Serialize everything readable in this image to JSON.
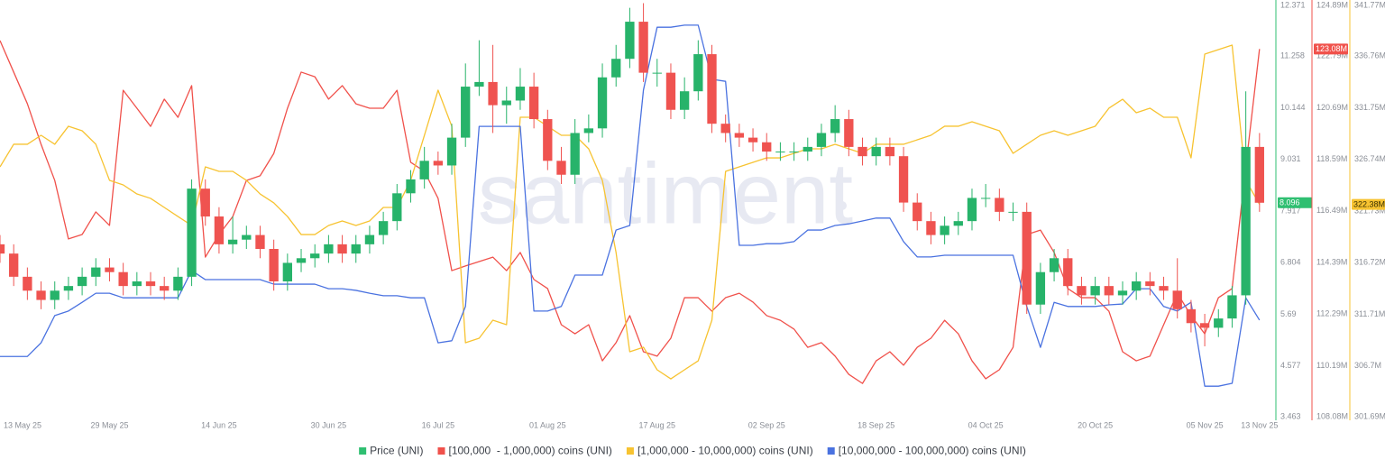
{
  "chart_data": {
    "type": "candlestick",
    "name": "Price (UNI)",
    "color": "#2fbf71",
    "up_color": "#27b36a",
    "down_color": "#ef5350",
    "watermark": "santiment",
    "grid": true,
    "legend": "bottom",
    "x": [
      "2025-05-13",
      "2025-05-15",
      "2025-05-17",
      "2025-05-19",
      "2025-05-21",
      "2025-05-23",
      "2025-05-25",
      "2025-05-27",
      "2025-05-29",
      "2025-05-31",
      "2025-06-02",
      "2025-06-04",
      "2025-06-06",
      "2025-06-08",
      "2025-06-10",
      "2025-06-12",
      "2025-06-14",
      "2025-06-16",
      "2025-06-18",
      "2025-06-20",
      "2025-06-22",
      "2025-06-24",
      "2025-06-26",
      "2025-06-28",
      "2025-06-30",
      "2025-07-02",
      "2025-07-04",
      "2025-07-06",
      "2025-07-08",
      "2025-07-10",
      "2025-07-12",
      "2025-07-14",
      "2025-07-16",
      "2025-07-18",
      "2025-07-20",
      "2025-07-22",
      "2025-07-24",
      "2025-07-26",
      "2025-07-28",
      "2025-07-30",
      "2025-08-01",
      "2025-08-03",
      "2025-08-05",
      "2025-08-07",
      "2025-08-09",
      "2025-08-11",
      "2025-08-13",
      "2025-08-15",
      "2025-08-17",
      "2025-08-19",
      "2025-08-21",
      "2025-08-23",
      "2025-08-25",
      "2025-08-27",
      "2025-08-29",
      "2025-08-31",
      "2025-09-02",
      "2025-09-04",
      "2025-09-06",
      "2025-09-08",
      "2025-09-10",
      "2025-09-12",
      "2025-09-14",
      "2025-09-16",
      "2025-09-18",
      "2025-09-20",
      "2025-09-22",
      "2025-09-24",
      "2025-09-26",
      "2025-09-28",
      "2025-09-30",
      "2025-10-02",
      "2025-10-04",
      "2025-10-06",
      "2025-10-08",
      "2025-10-10",
      "2025-10-12",
      "2025-10-14",
      "2025-10-16",
      "2025-10-18",
      "2025-10-20",
      "2025-10-22",
      "2025-10-24",
      "2025-10-26",
      "2025-10-28",
      "2025-10-30",
      "2025-11-01",
      "2025-11-03",
      "2025-11-05",
      "2025-11-07",
      "2025-11-09",
      "2025-11-11",
      "2025-11-13"
    ],
    "xlim": [
      "2025-05-13",
      "2025-11-15"
    ],
    "xticks": [
      {
        "value": "2025-05-13",
        "label": "13 May 25"
      },
      {
        "value": "2025-05-29",
        "label": "29 May 25"
      },
      {
        "value": "2025-06-14",
        "label": "14 Jun 25"
      },
      {
        "value": "2025-06-30",
        "label": "30 Jun 25"
      },
      {
        "value": "2025-07-16",
        "label": "16 Jul 25"
      },
      {
        "value": "2025-08-01",
        "label": "01 Aug 25"
      },
      {
        "value": "2025-08-17",
        "label": "17 Aug 25"
      },
      {
        "value": "2025-09-02",
        "label": "02 Sep 25"
      },
      {
        "value": "2025-09-18",
        "label": "18 Sep 25"
      },
      {
        "value": "2025-10-04",
        "label": "04 Oct 25"
      },
      {
        "value": "2025-10-20",
        "label": "20 Oct 25"
      },
      {
        "value": "2025-11-05",
        "label": "05 Nov 25"
      },
      {
        "value": "2025-11-13",
        "label": "13 Nov 25"
      }
    ],
    "open": [
      7.2,
      7.0,
      6.5,
      6.2,
      6.0,
      6.2,
      6.3,
      6.5,
      6.7,
      6.6,
      6.3,
      6.4,
      6.3,
      6.2,
      6.5,
      8.4,
      7.8,
      7.2,
      7.3,
      7.4,
      7.1,
      6.4,
      6.8,
      6.9,
      7.0,
      7.2,
      7.0,
      7.2,
      7.4,
      7.7,
      8.3,
      8.6,
      9.0,
      8.9,
      9.5,
      10.6,
      10.7,
      10.2,
      10.3,
      10.6,
      9.9,
      9.0,
      8.7,
      9.6,
      9.7,
      10.8,
      11.2,
      12.0,
      10.9,
      10.9,
      10.1,
      10.5,
      11.3,
      9.8,
      9.6,
      9.5,
      9.4,
      9.2,
      9.2,
      9.2,
      9.3,
      9.6,
      9.9,
      9.3,
      9.1,
      9.3,
      9.1,
      8.1,
      7.7,
      7.4,
      7.6,
      7.7,
      8.2,
      8.2,
      7.9,
      7.9,
      5.9,
      6.6,
      6.9,
      6.3,
      6.1,
      6.3,
      6.1,
      6.2,
      6.4,
      6.3,
      6.2,
      5.8,
      5.5,
      5.4,
      5.6,
      6.1,
      9.3
    ],
    "high": [
      7.4,
      7.2,
      6.7,
      6.4,
      6.4,
      6.5,
      6.7,
      6.9,
      6.9,
      6.8,
      6.6,
      6.6,
      6.5,
      6.7,
      8.6,
      8.6,
      8.0,
      7.8,
      7.6,
      7.6,
      7.3,
      7.0,
      7.1,
      7.2,
      7.4,
      7.4,
      7.4,
      7.6,
      7.9,
      8.5,
      8.8,
      9.3,
      9.2,
      9.8,
      11.1,
      11.6,
      11.5,
      10.6,
      11.0,
      10.9,
      10.1,
      9.3,
      9.9,
      10.0,
      11.1,
      11.5,
      12.3,
      12.4,
      11.2,
      11.1,
      10.8,
      11.6,
      11.5,
      10.0,
      9.8,
      9.7,
      9.6,
      9.4,
      9.4,
      9.5,
      9.8,
      10.2,
      10.1,
      9.5,
      9.5,
      9.5,
      9.3,
      8.3,
      7.9,
      7.8,
      7.9,
      8.4,
      8.5,
      8.4,
      8.1,
      8.1,
      6.8,
      7.1,
      7.1,
      6.5,
      6.5,
      6.5,
      6.4,
      6.6,
      6.6,
      6.5,
      6.9,
      6.0,
      5.7,
      5.8,
      6.3,
      10.5,
      9.6
    ],
    "low": [
      6.8,
      6.3,
      6.0,
      5.8,
      5.8,
      6.0,
      6.1,
      6.3,
      6.4,
      6.1,
      6.1,
      6.1,
      6.0,
      6.0,
      6.3,
      7.6,
      7.0,
      7.0,
      7.1,
      6.9,
      6.2,
      6.2,
      6.6,
      6.7,
      6.8,
      6.8,
      6.8,
      7.0,
      7.2,
      7.5,
      8.1,
      8.4,
      8.7,
      8.7,
      9.3,
      10.4,
      9.6,
      9.8,
      10.1,
      9.7,
      8.8,
      8.5,
      8.5,
      9.4,
      9.5,
      10.6,
      11.0,
      10.7,
      10.6,
      9.9,
      9.9,
      10.3,
      9.6,
      9.4,
      9.3,
      9.2,
      9.0,
      9.0,
      9.0,
      9.0,
      9.1,
      9.4,
      9.1,
      8.9,
      8.9,
      8.9,
      7.9,
      7.5,
      7.2,
      7.2,
      7.4,
      7.5,
      8.0,
      7.7,
      7.7,
      5.7,
      5.7,
      6.4,
      6.1,
      5.9,
      5.9,
      5.9,
      5.9,
      6.0,
      6.1,
      6.0,
      5.6,
      5.3,
      5.0,
      5.2,
      5.4,
      5.9,
      7.9
    ],
    "close": [
      7.0,
      6.5,
      6.2,
      6.0,
      6.2,
      6.3,
      6.5,
      6.7,
      6.6,
      6.3,
      6.4,
      6.3,
      6.2,
      6.5,
      8.4,
      7.8,
      7.2,
      7.3,
      7.4,
      7.1,
      6.4,
      6.8,
      6.9,
      7.0,
      7.2,
      7.0,
      7.2,
      7.4,
      7.7,
      8.3,
      8.6,
      9.0,
      8.9,
      9.5,
      10.6,
      10.7,
      10.2,
      10.3,
      10.6,
      9.9,
      9.0,
      8.7,
      9.6,
      9.7,
      10.8,
      11.2,
      12.0,
      10.9,
      10.9,
      10.1,
      10.5,
      11.3,
      9.8,
      9.6,
      9.5,
      9.4,
      9.2,
      9.2,
      9.2,
      9.3,
      9.6,
      9.9,
      9.3,
      9.1,
      9.3,
      9.1,
      8.1,
      7.7,
      7.4,
      7.6,
      7.7,
      8.2,
      8.2,
      7.9,
      7.9,
      5.9,
      6.6,
      6.9,
      6.3,
      6.1,
      6.3,
      6.1,
      6.2,
      6.4,
      6.3,
      6.2,
      5.8,
      5.5,
      5.4,
      5.6,
      6.1,
      9.3,
      8.096
    ],
    "last_label": "8.096",
    "ylim": [
      3.463,
      12.371
    ],
    "yticks": [
      3.463,
      4.577,
      5.69,
      6.804,
      7.917,
      9.031,
      10.144,
      11.258,
      12.371
    ],
    "y2lim": [
      108.08,
      124.89
    ],
    "y2ticks": [
      {
        "value": 108.08,
        "label": "108.08M"
      },
      {
        "value": 110.19,
        "label": "110.19M"
      },
      {
        "value": 112.29,
        "label": "112.29M"
      },
      {
        "value": 114.39,
        "label": "114.39M"
      },
      {
        "value": 116.49,
        "label": "116.49M"
      },
      {
        "value": 118.59,
        "label": "118.59M"
      },
      {
        "value": 120.69,
        "label": "120.69M"
      },
      {
        "value": 122.79,
        "label": "122.79M"
      },
      {
        "value": 124.89,
        "label": "124.89M"
      }
    ],
    "y3lim": [
      301.69,
      341.77
    ],
    "y3ticks": [
      {
        "value": 301.69,
        "label": "301.69M"
      },
      {
        "value": 306.7,
        "label": "306.7M"
      },
      {
        "value": 311.71,
        "label": "311.71M"
      },
      {
        "value": 316.72,
        "label": "316.72M"
      },
      {
        "value": 321.73,
        "label": "321.73M"
      },
      {
        "value": 326.74,
        "label": "326.74M"
      },
      {
        "value": 331.75,
        "label": "331.75M"
      },
      {
        "value": 336.76,
        "label": "336.76M"
      },
      {
        "value": 341.77,
        "label": "341.77M"
      }
    ],
    "y4lim": [
      0,
      100
    ],
    "series": [
      {
        "name": "[100,000  - 1,000,000) coins (UNI)",
        "color": "#f0514b",
        "axis": "y2",
        "last_label": "123.08M",
        "values": [
          123.42,
          122.14,
          120.85,
          119.2,
          117.73,
          115.35,
          115.53,
          116.45,
          115.9,
          121.4,
          120.67,
          119.93,
          121.04,
          120.3,
          121.59,
          114.61,
          115.53,
          116.26,
          117.73,
          117.92,
          118.83,
          120.67,
          122.14,
          121.95,
          121.04,
          121.59,
          120.85,
          120.67,
          120.67,
          121.4,
          118.47,
          118.1,
          117.0,
          114.06,
          114.25,
          114.43,
          114.61,
          114.06,
          114.8,
          113.7,
          113.33,
          111.86,
          111.49,
          111.86,
          110.39,
          111.13,
          112.23,
          110.76,
          110.58,
          111.31,
          112.96,
          112.96,
          112.41,
          112.96,
          113.14,
          112.78,
          112.23,
          112.04,
          111.68,
          110.94,
          111.13,
          110.58,
          109.84,
          109.47,
          110.39,
          110.76,
          110.21,
          110.94,
          111.31,
          112.04,
          111.49,
          110.39,
          109.66,
          110.03,
          110.94,
          115.53,
          115.71,
          114.8,
          113.33,
          112.96,
          112.96,
          112.41,
          110.76,
          110.39,
          110.58,
          111.86,
          113.14,
          112.23,
          111.49,
          112.96,
          113.33,
          118.28,
          123.08
        ]
      },
      {
        "name": "[1,000,000 - 10,000,000) coins (UNI)",
        "color": "#f7c331",
        "axis": "y3",
        "last_label": "322.38M",
        "values": [
          326.02,
          328.21,
          328.21,
          329.08,
          328.21,
          329.96,
          329.52,
          328.21,
          324.71,
          324.27,
          323.39,
          322.96,
          322.08,
          321.2,
          320.33,
          326.02,
          325.58,
          325.58,
          324.71,
          323.39,
          322.52,
          321.2,
          319.45,
          319.45,
          320.33,
          320.77,
          320.33,
          320.77,
          322.08,
          322.08,
          324.71,
          329.08,
          333.46,
          329.96,
          308.95,
          309.39,
          311.14,
          310.7,
          330.83,
          330.83,
          329.96,
          329.08,
          329.08,
          327.77,
          324.71,
          317.7,
          308.08,
          308.52,
          306.33,
          305.45,
          306.33,
          307.2,
          311.14,
          325.58,
          326.02,
          326.46,
          326.89,
          326.89,
          327.33,
          327.77,
          327.77,
          328.21,
          327.77,
          327.33,
          328.21,
          328.21,
          328.21,
          328.64,
          329.08,
          329.96,
          329.96,
          330.39,
          329.96,
          329.52,
          327.33,
          328.21,
          329.08,
          329.52,
          329.08,
          329.52,
          329.96,
          331.71,
          332.58,
          331.27,
          331.71,
          330.83,
          330.83,
          326.89,
          336.96,
          337.39,
          337.83,
          324.71,
          322.38
        ]
      },
      {
        "name": "[10,000,000 - 100,000,000) coins (UNI)",
        "color": "#4a72e0",
        "axis": "y4",
        "values": [
          14.8,
          14.8,
          14.8,
          18.1,
          24.7,
          25.8,
          27.9,
          30.1,
          30.1,
          29.0,
          29.0,
          29.0,
          29.0,
          29.0,
          35.6,
          33.4,
          33.4,
          33.4,
          33.4,
          33.4,
          32.3,
          32.3,
          32.3,
          32.3,
          31.2,
          31.2,
          30.8,
          30.1,
          29.5,
          29.5,
          29.0,
          29.0,
          18.1,
          18.6,
          26.9,
          70.5,
          70.5,
          70.5,
          70.5,
          25.8,
          25.8,
          26.9,
          34.5,
          34.5,
          34.5,
          45.4,
          46.5,
          79.3,
          94.5,
          94.5,
          95.0,
          95.0,
          81.9,
          81.4,
          41.7,
          41.7,
          42.1,
          42.1,
          42.6,
          45.4,
          45.4,
          46.5,
          46.9,
          47.6,
          48.3,
          48.3,
          42.6,
          38.9,
          38.9,
          39.3,
          39.3,
          39.3,
          39.3,
          39.3,
          39.3,
          26.9,
          17.0,
          27.9,
          26.9,
          26.9,
          26.9,
          27.3,
          27.5,
          31.2,
          31.2,
          26.9,
          25.8,
          27.9,
          7.6,
          7.6,
          8.3,
          29.0,
          23.6
        ]
      }
    ]
  }
}
